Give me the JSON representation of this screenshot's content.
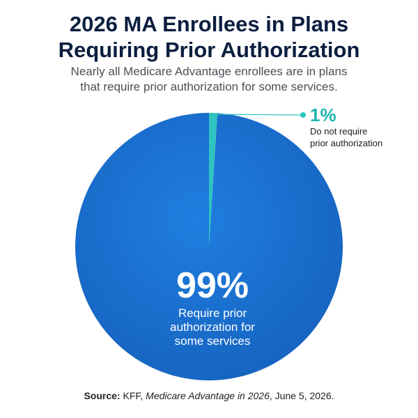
{
  "title": {
    "line1": "2026 MA Enrollees in Plans",
    "line2": "Requiring Prior Authorization"
  },
  "subtitle": {
    "line1": "Nearly all Medicare Advantage enrollees are in plans",
    "line2": "that require prior authorization for some services."
  },
  "chart_data": {
    "type": "pie",
    "title": "2026 MA Enrollees in Plans Requiring Prior Authorization",
    "unit": "%",
    "slices": [
      {
        "label": "Require prior authorization for some services",
        "value": 99,
        "display": "99%",
        "desc_lines": [
          "Require prior",
          "authorization for",
          "some services"
        ],
        "color": "#1a6fd0"
      },
      {
        "label": "Do not require prior authorization",
        "value": 1,
        "display": "1%",
        "desc_lines": [
          "Do not require",
          "prior authorization"
        ],
        "color": "#2ec4c0"
      }
    ]
  },
  "source": {
    "label": "Source:",
    "publisher": "KFF,",
    "publication": "Medicare Advantage in 2026",
    "date": ", June 5, 2026."
  }
}
